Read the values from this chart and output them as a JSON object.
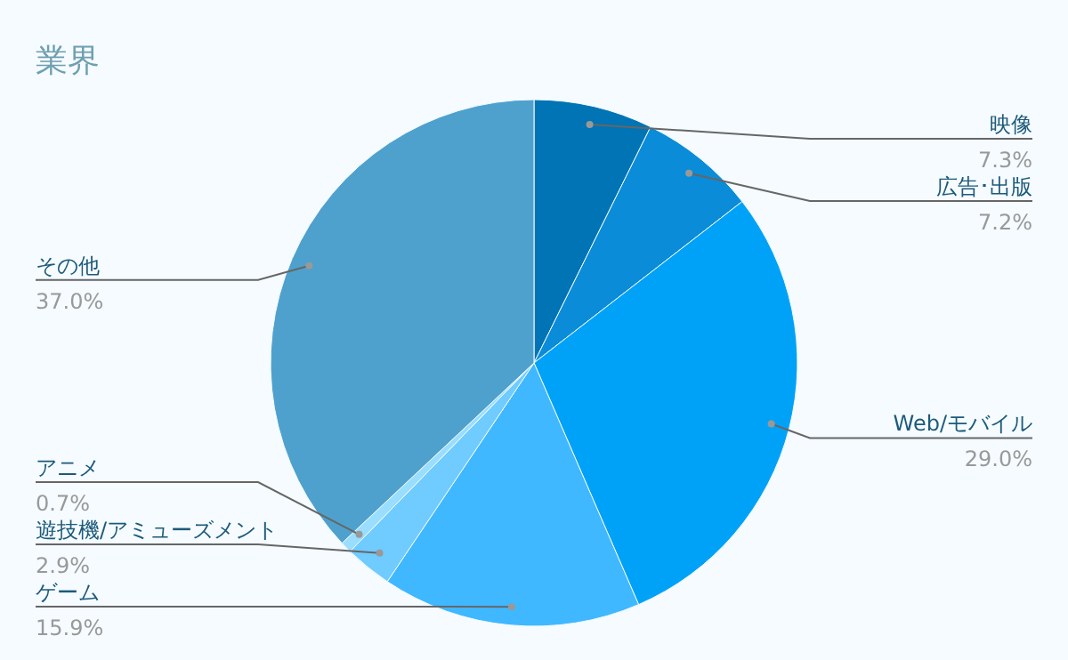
{
  "chart_data": {
    "type": "pie",
    "title": "業界",
    "categories": [
      "映像",
      "広告･出版",
      "Web/モバイル",
      "ゲーム",
      "遊技機/アミューズメント",
      "アニメ",
      "その他"
    ],
    "values": [
      7.3,
      7.2,
      29.0,
      15.9,
      2.9,
      0.7,
      37.0
    ],
    "value_labels": [
      "7.3%",
      "7.2%",
      "29.0%",
      "15.9%",
      "2.9%",
      "0.7%",
      "37.0%"
    ],
    "colors": [
      "#0074b4",
      "#0a8cd8",
      "#00a2f8",
      "#40b8ff",
      "#70cbff",
      "#99ddff",
      "#4ea1cd"
    ]
  }
}
